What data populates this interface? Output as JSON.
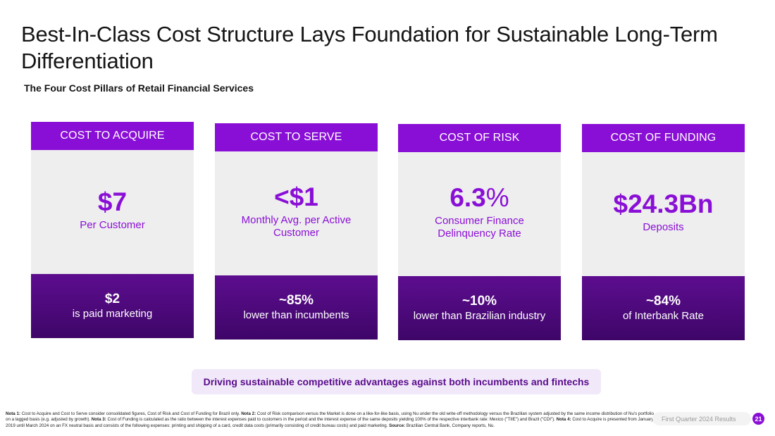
{
  "title": "Best-In-Class Cost Structure Lays Foundation for Sustainable Long-Term Differentiation",
  "subtitle": "The Four Cost Pillars of Retail Financial Services",
  "pillars": [
    {
      "header": "COST TO ACQUIRE",
      "value": "$7",
      "value_suffix": "",
      "description": "Per Customer",
      "foot_value": "$2",
      "foot_text": "is paid marketing"
    },
    {
      "header": "COST TO SERVE",
      "value": "<$1",
      "value_suffix": "",
      "description": "Monthly Avg. per Active Customer",
      "foot_value": "~85%",
      "foot_text": "lower than incumbents"
    },
    {
      "header": "COST OF RISK",
      "value": "6.3",
      "value_suffix": "%",
      "description": "Consumer Finance Delinquency Rate",
      "foot_value": "~10%",
      "foot_text": "lower than Brazilian industry"
    },
    {
      "header": "COST OF FUNDING",
      "value": "$24.3Bn",
      "value_suffix": "",
      "description": "Deposits",
      "foot_value": "~84%",
      "foot_text": "of Interbank Rate"
    }
  ],
  "banner": "Driving sustainable competitive advantages against both incumbents and fintechs",
  "notes": {
    "n1_label": "Nota 1:",
    "n1_text": " Cost to Acquire and Cost to Serve consider consolidated figures, Cost of Risk and Cost of Funding for Brazil only. ",
    "n2_label": "Nota 2:",
    "n2_text": " Cost of Risk comparison versus the Market is done on a like-for-like basis, using Nu under the old write-off methodology versus the Brazilian system adjusted by the same income distribution of Nu's portfolio on a lagged basis (e.g. adjusted by growth). ",
    "n3_label": "Nota 3:",
    "n3_text": " Cost of Funding is calculated as the ratio between the interest expenses paid to customers in the period and the interest expense of the same deposits yielding 100% of the respective interbank rate: Mexico (\"TIIE\") and Brazil (\"CDI\"). ",
    "n4_label": "Nota 4:",
    "n4_text": " Cost to Acquire is presented from January 2019 until March 2024 on an FX neutral basis and consists of the following expenses: printing and shipping of a card, credit data costs (primarily consisting of credit bureau costs) and paid marketing. ",
    "source_label": "Source:",
    "source_text": " Brazilian Central Bank, Company reports, Nu."
  },
  "footer": {
    "label": "First Quarter 2024 Results",
    "page": "21"
  },
  "colors": {
    "accent": "#8a0fd6",
    "dark_purple": "#4a0878",
    "panel_grey": "#eeeeee",
    "banner_bg": "#f1e8f9"
  }
}
